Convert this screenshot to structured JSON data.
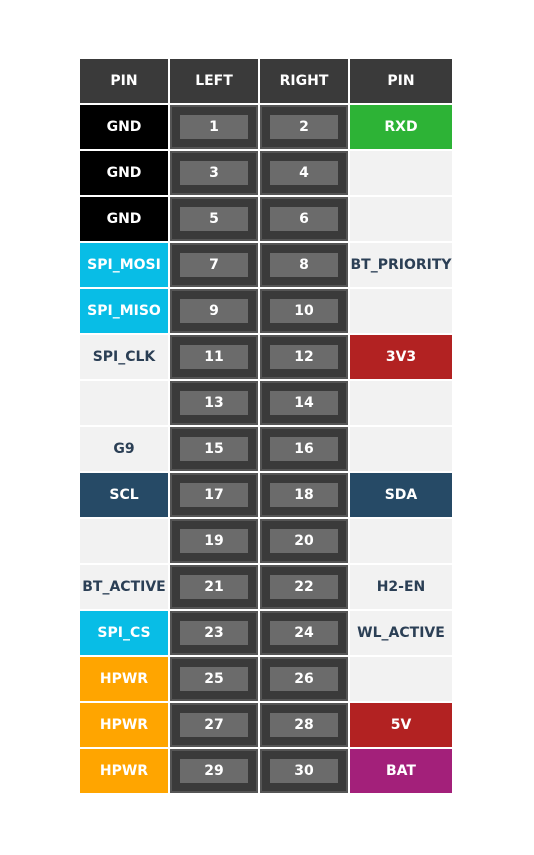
{
  "header": {
    "pin_left": "PIN",
    "left": "LEFT",
    "right": "RIGHT",
    "pin_right": "PIN"
  },
  "colors": {
    "black": "#000000",
    "green": "#2db336",
    "cyan": "#08bde6",
    "red": "#b22222",
    "navy": "#264a66",
    "orange": "#ffa500",
    "magenta": "#a3207a",
    "light": "#f2f2f2",
    "dark_text": "#2b3f55"
  },
  "rows": [
    {
      "left_label": "GND",
      "left_color": "black",
      "left_num": "1",
      "right_num": "2",
      "right_label": "RXD",
      "right_color": "green"
    },
    {
      "left_label": "GND",
      "left_color": "black",
      "left_num": "3",
      "right_num": "4",
      "right_label": "",
      "right_color": "light"
    },
    {
      "left_label": "GND",
      "left_color": "black",
      "left_num": "5",
      "right_num": "6",
      "right_label": "",
      "right_color": "light"
    },
    {
      "left_label": "SPI_MOSI",
      "left_color": "cyan",
      "left_num": "7",
      "right_num": "8",
      "right_label": "BT_PRIORITY",
      "right_color": "light"
    },
    {
      "left_label": "SPI_MISO",
      "left_color": "cyan",
      "left_num": "9",
      "right_num": "10",
      "right_label": "",
      "right_color": "light"
    },
    {
      "left_label": "SPI_CLK",
      "left_color": "light",
      "left_num": "11",
      "right_num": "12",
      "right_label": "3V3",
      "right_color": "red"
    },
    {
      "left_label": "",
      "left_color": "light",
      "left_num": "13",
      "right_num": "14",
      "right_label": "",
      "right_color": "light"
    },
    {
      "left_label": "G9",
      "left_color": "light",
      "left_num": "15",
      "right_num": "16",
      "right_label": "",
      "right_color": "light"
    },
    {
      "left_label": "SCL",
      "left_color": "navy",
      "left_num": "17",
      "right_num": "18",
      "right_label": "SDA",
      "right_color": "navy"
    },
    {
      "left_label": "",
      "left_color": "light",
      "left_num": "19",
      "right_num": "20",
      "right_label": "",
      "right_color": "light"
    },
    {
      "left_label": "BT_ACTIVE",
      "left_color": "light",
      "left_num": "21",
      "right_num": "22",
      "right_label": "H2-EN",
      "right_color": "light"
    },
    {
      "left_label": "SPI_CS",
      "left_color": "cyan",
      "left_num": "23",
      "right_num": "24",
      "right_label": "WL_ACTIVE",
      "right_color": "light"
    },
    {
      "left_label": "HPWR",
      "left_color": "orange",
      "left_num": "25",
      "right_num": "26",
      "right_label": "",
      "right_color": "light"
    },
    {
      "left_label": "HPWR",
      "left_color": "orange",
      "left_num": "27",
      "right_num": "28",
      "right_label": "5V",
      "right_color": "red"
    },
    {
      "left_label": "HPWR",
      "left_color": "orange",
      "left_num": "29",
      "right_num": "30",
      "right_label": "BAT",
      "right_color": "magenta"
    }
  ]
}
